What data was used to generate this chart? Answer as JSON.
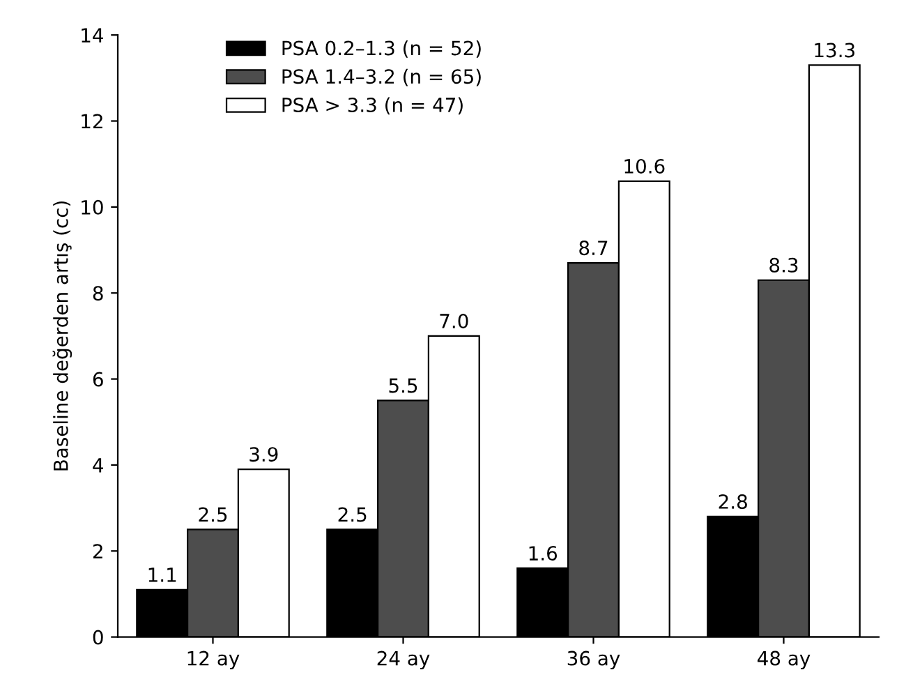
{
  "chart_data": {
    "type": "bar",
    "ylabel": "Baseline değerden artış (cc)",
    "categories": [
      "12 ay",
      "24 ay",
      "36 ay",
      "48 ay"
    ],
    "series": [
      {
        "name": "PSA 0.2–1.3 (n = 52)",
        "color": "#000000",
        "values": [
          1.1,
          2.5,
          1.6,
          2.8
        ],
        "value_labels": [
          "1.1",
          "2.5",
          "1.6",
          "2.8"
        ]
      },
      {
        "name": "PSA 1.4–3.2 (n = 65)",
        "color": "#4d4d4d",
        "values": [
          2.5,
          5.5,
          8.7,
          8.3
        ],
        "value_labels": [
          "2.5",
          "5.5",
          "8.7",
          "8.3"
        ]
      },
      {
        "name": "PSA > 3.3 (n = 47)",
        "color": "#ffffff",
        "values": [
          3.9,
          7.0,
          10.6,
          13.3
        ],
        "value_labels": [
          "3.9",
          "7.0",
          "10.6",
          "13.3"
        ]
      }
    ],
    "ylim": [
      0,
      14
    ],
    "yticks": [
      0,
      2,
      4,
      6,
      8,
      10,
      12,
      14
    ],
    "grid": false,
    "legend": "top left"
  }
}
